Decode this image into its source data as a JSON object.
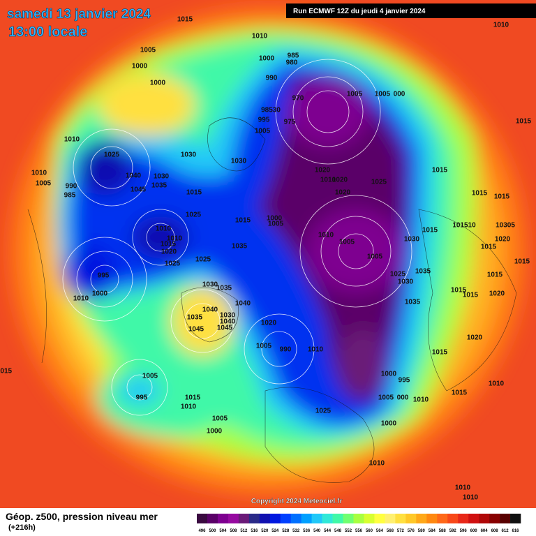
{
  "header": {
    "date": "samedi 13 janvier 2024",
    "time": "13:00 locale",
    "run": "Run ECMWF 12Z du jeudi 4 janvier 2024"
  },
  "copyright": "Copyright 2024 Meteociel.fr",
  "footer": {
    "title": "Géop. z500, pression niveau mer",
    "lead": "(+216h)"
  },
  "legend": {
    "labels": [
      496,
      500,
      504,
      508,
      512,
      516,
      520,
      524,
      528,
      532,
      536,
      540,
      544,
      548,
      552,
      556,
      560,
      564,
      568,
      572,
      576,
      580,
      584,
      588,
      592,
      596,
      600,
      604,
      608,
      612,
      616
    ],
    "colors": [
      "#3a0a40",
      "#5a0068",
      "#7e0090",
      "#960aa0",
      "#6a1a78",
      "#2a2a88",
      "#1010b0",
      "#0018e0",
      "#0040ff",
      "#0070ff",
      "#00a0ff",
      "#20c8f8",
      "#30e8d8",
      "#40f8a8",
      "#70ff70",
      "#a8ff40",
      "#d8ff30",
      "#ffff40",
      "#fff070",
      "#ffe040",
      "#ffc828",
      "#ffa818",
      "#ff8810",
      "#ff6818",
      "#f84818",
      "#e82818",
      "#d01010",
      "#b00808",
      "#880000",
      "#580000",
      "#101010"
    ]
  },
  "isobars": [
    "1015",
    "1010",
    "1010",
    "1005",
    "985",
    "980",
    "1000",
    "1000",
    "1000",
    "990",
    "1005",
    "1005",
    "000",
    "1015",
    "98530",
    "970",
    "975",
    "995",
    "1005",
    "1010",
    "1025",
    "1030",
    "1030",
    "1015",
    "1020",
    "1010",
    "1020",
    "1025",
    "1020",
    "1010",
    "1005",
    "990",
    "985",
    "1040",
    "1030",
    "1035",
    "1045",
    "1015",
    "1015",
    "1015",
    "1025",
    "1015",
    "1000",
    "1005",
    "1010",
    "1010",
    "1015",
    "1020",
    "1010",
    "1005",
    "1030",
    "1015",
    "101510",
    "10305",
    "1020",
    "1015",
    "1035",
    "1005",
    "1025",
    "1025",
    "1015",
    "995",
    "1025",
    "1035",
    "1030",
    "1015",
    "1030",
    "1035",
    "1000",
    "1010",
    "1015",
    "1015",
    "1020",
    "1035",
    "1040",
    "1040",
    "1030",
    "1035",
    "1040",
    "1045",
    "1045",
    "1020",
    "1005",
    "990",
    "1010",
    "1020",
    "1015",
    "1015",
    "1005",
    "1000",
    "995",
    "1010",
    "995",
    "1015",
    "1005",
    "000",
    "1010",
    "1015",
    "1010",
    "1025",
    "1005",
    "1000",
    "1000",
    "1010",
    "1010",
    "1010"
  ]
}
